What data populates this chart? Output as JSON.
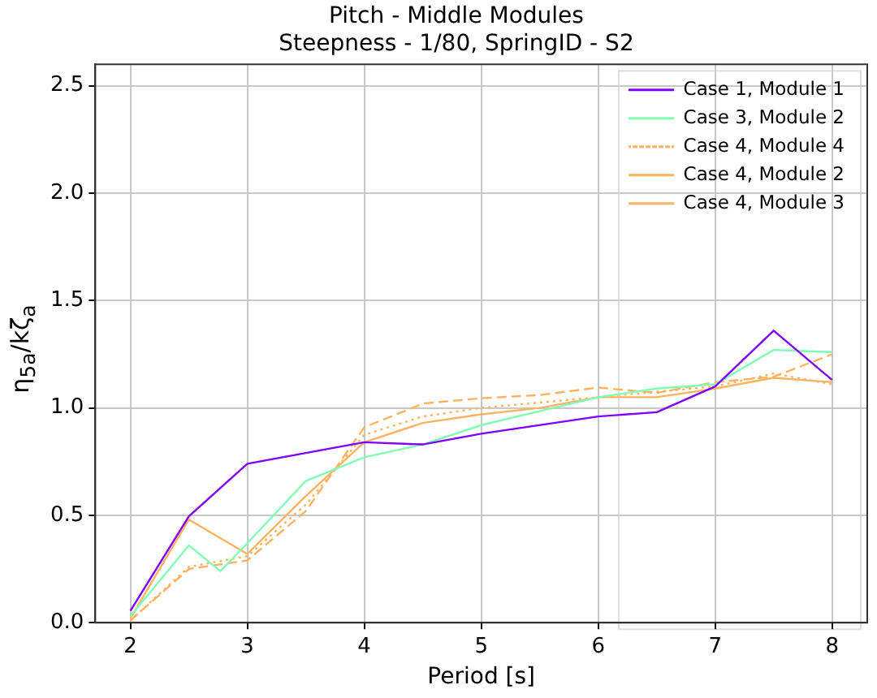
{
  "chart_data": {
    "type": "line",
    "title": "Pitch - Middle Modules",
    "subtitle": "Steepness - 1/80, SpringID - S2",
    "xlabel": "Period [s]",
    "ylabel": "η$_{5a}$/kζ$_{a}$",
    "xlim": [
      1.7,
      8.3
    ],
    "xticks": [
      2,
      3,
      4,
      5,
      6,
      7,
      8
    ],
    "ylim": [
      0,
      2.6
    ],
    "yticks": [
      {
        "value": 0,
        "label": "0.0"
      },
      0.5,
      {
        "value": 1,
        "label": "1.0"
      },
      1.5,
      {
        "value": 2,
        "label": "2.0"
      },
      2.5
    ],
    "grid": true,
    "legend": "top right",
    "marker": "none",
    "series": [
      {
        "name": "Case 1, Module 1",
        "color": "#8000ff",
        "line_style": "solid",
        "x": [
          2,
          2.5,
          3,
          4,
          4.5,
          5,
          6,
          6.5,
          7,
          7.5,
          8
        ],
        "values": [
          0.055,
          0.495,
          0.74,
          0.84,
          0.83,
          0.88,
          0.96,
          0.98,
          1.1,
          1.36,
          1.13
        ]
      },
      {
        "name": "Case 3, Module 2",
        "color": "#80ffb4",
        "line_style": "solid",
        "x": [
          2,
          2.5,
          2.77,
          3,
          3.5,
          4,
          4.5,
          5,
          6,
          6.5,
          7,
          7.5,
          8
        ],
        "values": [
          0.03,
          0.36,
          0.24,
          0.37,
          0.66,
          0.77,
          0.83,
          0.92,
          1.05,
          1.09,
          1.11,
          1.27,
          1.26
        ]
      },
      {
        "name": "Case 4, Module 4",
        "color": "#ffb360",
        "line_style": "dotted",
        "x": [
          2,
          2.5,
          3,
          3.5,
          4,
          4.5,
          5,
          6,
          7,
          7.5,
          8
        ],
        "values": [
          0.01,
          0.26,
          0.31,
          0.55,
          0.875,
          0.96,
          1.0,
          1.05,
          1.1,
          1.16,
          1.11
        ]
      },
      {
        "name": "Case 4, Module 2",
        "color": "#ffb360",
        "line_style": "solid",
        "x": [
          2,
          2.5,
          3,
          3.5,
          4,
          4.5,
          5,
          5.5,
          6,
          6.5,
          7,
          7.5,
          8
        ],
        "values": [
          0.02,
          0.48,
          0.32,
          0.59,
          0.84,
          0.93,
          0.97,
          1.0,
          1.05,
          1.05,
          1.09,
          1.14,
          1.12
        ]
      },
      {
        "name": "Case 4, Module 3",
        "color": "#ffb360",
        "line_style": "dashed",
        "x": [
          2,
          2.5,
          3,
          3.5,
          4,
          4.5,
          5,
          5.5,
          6,
          6.5,
          7,
          7.5,
          8
        ],
        "values": [
          0.01,
          0.25,
          0.29,
          0.52,
          0.91,
          1.02,
          1.045,
          1.06,
          1.095,
          1.07,
          1.12,
          1.145,
          1.25
        ]
      }
    ]
  }
}
